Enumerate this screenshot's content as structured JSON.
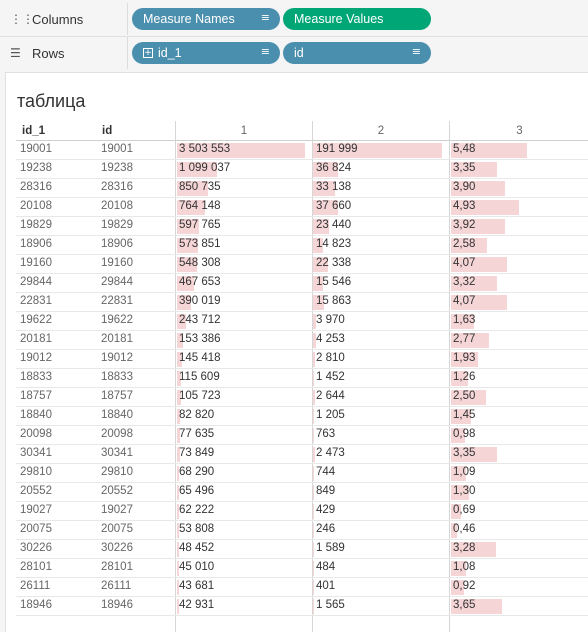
{
  "shelves": {
    "columns": {
      "label": "Columns",
      "icon": "columns-icon",
      "pills": [
        {
          "label": "Measure Names",
          "color": "#4b8fae",
          "icon": "sort-icon"
        },
        {
          "label": "Measure Values",
          "color": "#00a676"
        }
      ]
    },
    "rows": {
      "label": "Rows",
      "icon": "rows-icon",
      "pills": [
        {
          "label": "id_1",
          "color": "#4b8fae",
          "prefix_icon": "plus-box-icon",
          "icon": "sort-icon"
        },
        {
          "label": "id",
          "color": "#4b8fae",
          "icon": "sort-icon"
        }
      ]
    }
  },
  "worksheet": {
    "title": "таблица",
    "headers": {
      "id_1": "id_1",
      "id": "id",
      "m1": "1",
      "m2": "2",
      "m3": "3"
    },
    "bar_color": "#f5d5d6",
    "rows": [
      {
        "id_1": "19001",
        "id": "19001",
        "m1": "3 503 553",
        "m2": "191 999",
        "m3": "5,48"
      },
      {
        "id_1": "19238",
        "id": "19238",
        "m1": "1 099 037",
        "m2": "36 824",
        "m3": "3,35"
      },
      {
        "id_1": "28316",
        "id": "28316",
        "m1": "850 735",
        "m2": "33 138",
        "m3": "3,90"
      },
      {
        "id_1": "20108",
        "id": "20108",
        "m1": "764 148",
        "m2": "37 660",
        "m3": "4,93"
      },
      {
        "id_1": "19829",
        "id": "19829",
        "m1": "597 765",
        "m2": "23 440",
        "m3": "3,92"
      },
      {
        "id_1": "18906",
        "id": "18906",
        "m1": "573 851",
        "m2": "14 823",
        "m3": "2,58"
      },
      {
        "id_1": "19160",
        "id": "19160",
        "m1": "548 308",
        "m2": "22 338",
        "m3": "4,07"
      },
      {
        "id_1": "29844",
        "id": "29844",
        "m1": "467 653",
        "m2": "15 546",
        "m3": "3,32"
      },
      {
        "id_1": "22831",
        "id": "22831",
        "m1": "390 019",
        "m2": "15 863",
        "m3": "4,07"
      },
      {
        "id_1": "19622",
        "id": "19622",
        "m1": "243 712",
        "m2": "3 970",
        "m3": "1,63"
      },
      {
        "id_1": "20181",
        "id": "20181",
        "m1": "153 386",
        "m2": "4 253",
        "m3": "2,77"
      },
      {
        "id_1": "19012",
        "id": "19012",
        "m1": "145 418",
        "m2": "2 810",
        "m3": "1,93"
      },
      {
        "id_1": "18833",
        "id": "18833",
        "m1": "115 609",
        "m2": "1 452",
        "m3": "1,26"
      },
      {
        "id_1": "18757",
        "id": "18757",
        "m1": "105 723",
        "m2": "2 644",
        "m3": "2,50"
      },
      {
        "id_1": "18840",
        "id": "18840",
        "m1": "82 820",
        "m2": "1 205",
        "m3": "1,45"
      },
      {
        "id_1": "20098",
        "id": "20098",
        "m1": "77 635",
        "m2": "763",
        "m3": "0,98"
      },
      {
        "id_1": "30341",
        "id": "30341",
        "m1": "73 849",
        "m2": "2 473",
        "m3": "3,35"
      },
      {
        "id_1": "29810",
        "id": "29810",
        "m1": "68 290",
        "m2": "744",
        "m3": "1,09"
      },
      {
        "id_1": "20552",
        "id": "20552",
        "m1": "65 496",
        "m2": "849",
        "m3": "1,30"
      },
      {
        "id_1": "19027",
        "id": "19027",
        "m1": "62 222",
        "m2": "429",
        "m3": "0,69"
      },
      {
        "id_1": "20075",
        "id": "20075",
        "m1": "53 808",
        "m2": "246",
        "m3": "0,46"
      },
      {
        "id_1": "30226",
        "id": "30226",
        "m1": "48 452",
        "m2": "1 589",
        "m3": "3,28"
      },
      {
        "id_1": "28101",
        "id": "28101",
        "m1": "45 010",
        "m2": "484",
        "m3": "1,08"
      },
      {
        "id_1": "26111",
        "id": "26111",
        "m1": "43 681",
        "m2": "401",
        "m3": "0,92"
      },
      {
        "id_1": "18946",
        "id": "18946",
        "m1": "42 931",
        "m2": "1 565",
        "m3": "3,65"
      }
    ]
  }
}
